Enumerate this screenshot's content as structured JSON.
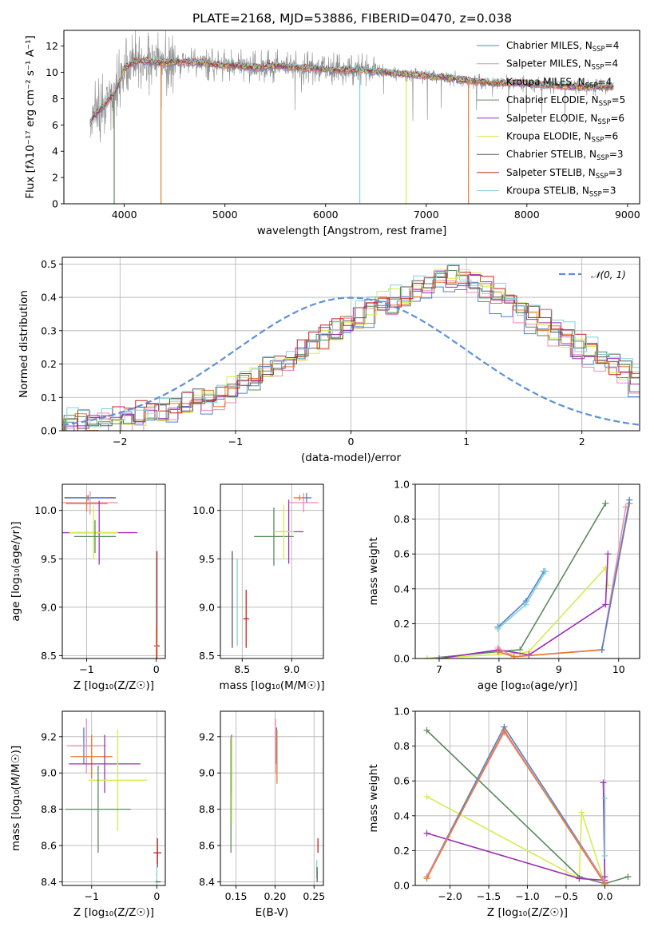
{
  "title": "PLATE=2168, MJD=53886, FIBERID=0470, z=0.038",
  "colors": [
    "#4f81d6",
    "#f08cb0",
    "#e87a2e",
    "#5b8a5b",
    "#9b30b6",
    "#d6ec50",
    "#5a5a5a",
    "#cc1f1f",
    "#7fd2d6"
  ],
  "chart_data": [
    {
      "id": "spectrum",
      "type": "line",
      "title": "PLATE=2168, MJD=53886, FIBERID=0470, z=0.038",
      "xlabel": "wavelength [Angstrom, rest frame]",
      "ylabel": "Flux [fλ10⁻¹⁷ erg cm⁻² s⁻¹ A⁻¹]",
      "xlim": [
        3400,
        9120
      ],
      "ylim": [
        0,
        13.2
      ],
      "xticks": [
        4000,
        5000,
        6000,
        7000,
        8000,
        9000
      ],
      "yticks": [
        0,
        2,
        4,
        6,
        8,
        10,
        12
      ],
      "grid": false,
      "legend_position": "top-right",
      "data_color": "#8c8c8c",
      "data_wavelength_range": [
        3660,
        8860
      ],
      "continuum": {
        "x": [
          3650,
          3700,
          3800,
          3900,
          3950,
          4000,
          4100,
          4200,
          4350,
          4500,
          4700,
          4900,
          5100,
          5300,
          5500,
          5700,
          5900,
          6100,
          6300,
          6500,
          6700,
          6900,
          7100,
          7300,
          7500,
          7700,
          7900,
          8100,
          8300,
          8500,
          8700,
          8850
        ],
        "y": [
          6.0,
          6.7,
          7.5,
          8.4,
          9.2,
          10.3,
          10.8,
          10.9,
          10.7,
          10.8,
          10.8,
          10.6,
          10.5,
          10.4,
          10.5,
          10.4,
          10.3,
          10.2,
          10.2,
          10.1,
          9.9,
          9.8,
          9.7,
          9.5,
          9.3,
          9.2,
          9.2,
          9.1,
          9.0,
          8.9,
          8.9,
          8.9
        ]
      },
      "dropouts": [
        {
          "series": 3,
          "x": 3900
        },
        {
          "series": 2,
          "x": 4365
        },
        {
          "series": 8,
          "x": 6340
        },
        {
          "series": 5,
          "x": 6800
        },
        {
          "series": 2,
          "x": 7420
        }
      ],
      "series": [
        {
          "name": "Chabrier MILES, N",
          "sub": "SSP",
          "tail": "=4"
        },
        {
          "name": "Salpeter MILES, N",
          "sub": "SSP",
          "tail": "=4"
        },
        {
          "name": "Kroupa MILES, N",
          "sub": "SSP",
          "tail": "=4"
        },
        {
          "name": "Chabrier ELODIE, N",
          "sub": "SSP",
          "tail": "=5"
        },
        {
          "name": "Salpeter ELODIE, N",
          "sub": "SSP",
          "tail": "=6"
        },
        {
          "name": "Kroupa ELODIE, N",
          "sub": "SSP",
          "tail": "=6"
        },
        {
          "name": "Chabrier STELIB, N",
          "sub": "SSP",
          "tail": "=3"
        },
        {
          "name": "Salpeter STELIB, N",
          "sub": "SSP",
          "tail": "=3"
        },
        {
          "name": "Kroupa STELIB, N",
          "sub": "SSP",
          "tail": "=3"
        }
      ]
    },
    {
      "id": "residuals",
      "type": "histogram",
      "xlabel": "(data-model)/error",
      "ylabel": "Normed distribution",
      "xlim": [
        -2.5,
        2.5
      ],
      "ylim": [
        0,
        0.52
      ],
      "xticks": [
        -2,
        -1,
        0,
        1,
        2
      ],
      "yticks": [
        0.0,
        0.1,
        0.2,
        0.3,
        0.4,
        0.5
      ],
      "grid": true,
      "legend_position": "top-right",
      "legend_label": "𝒩(0, 1)",
      "reference_curve": "normal distribution, mean 0, sigma 1",
      "bins": {
        "start": -2.5,
        "width": 0.1
      },
      "base_values": [
        0.02,
        0.025,
        0.03,
        0.03,
        0.035,
        0.04,
        0.045,
        0.05,
        0.06,
        0.07,
        0.08,
        0.09,
        0.1,
        0.11,
        0.125,
        0.14,
        0.16,
        0.18,
        0.2,
        0.22,
        0.24,
        0.26,
        0.28,
        0.3,
        0.32,
        0.34,
        0.36,
        0.38,
        0.39,
        0.41,
        0.42,
        0.43,
        0.45,
        0.45,
        0.46,
        0.44,
        0.42,
        0.4,
        0.38,
        0.36,
        0.34,
        0.32,
        0.3,
        0.28,
        0.25,
        0.23,
        0.21,
        0.19,
        0.17,
        0.15,
        0.13,
        0.11,
        0.09,
        0.08,
        0.07,
        0.06,
        0.05,
        0.045,
        0.04,
        0.035
      ]
    },
    {
      "id": "z-vs-age",
      "type": "scatter",
      "xlabel": "Z [log₁₀(Z/Z☉)]",
      "ylabel": "age  [log₁₀(age/yr)]",
      "xlim": [
        -1.35,
        0.13
      ],
      "ylim": [
        8.47,
        10.27
      ],
      "xticks": [
        -1,
        0
      ],
      "yticks": [
        8.5,
        9.0,
        9.5,
        10.0
      ],
      "grid": true,
      "points": [
        {
          "c": 6,
          "x": -0.95,
          "y": 10.13,
          "xe": 0.37,
          "ye": 0.0
        },
        {
          "c": 0,
          "x": -0.98,
          "y": 10.13,
          "xe": 0.3,
          "ye": 0.03
        },
        {
          "c": 1,
          "x": -0.95,
          "y": 10.08,
          "xe": 0.4,
          "ye": 0.12
        },
        {
          "c": 2,
          "x": -1.0,
          "y": 10.07,
          "xe": 0.3,
          "ye": 0.08
        },
        {
          "c": 4,
          "x": -0.82,
          "y": 9.77,
          "xe": 0.55,
          "ye": 0.33
        },
        {
          "c": 5,
          "x": -0.9,
          "y": 9.77,
          "xe": 0.35,
          "ye": 0.28
        },
        {
          "c": 3,
          "x": -0.88,
          "y": 9.73,
          "xe": 0.3,
          "ye": 0.17
        },
        {
          "c": 8,
          "x": 0.0,
          "y": 9.0,
          "xe": 0.02,
          "ye": 0.5
        },
        {
          "c": 7,
          "x": 0.01,
          "y": 8.6,
          "xe": 0.04,
          "ye": 0.98
        },
        {
          "c": 2,
          "x": 0.0,
          "y": 8.6,
          "xe": 0.02,
          "ye": 0.2
        }
      ]
    },
    {
      "id": "mass-vs-age",
      "type": "scatter",
      "xlabel": "mass [log₁₀(M/M☉)]",
      "ylabel": "",
      "xlim": [
        8.28,
        9.32
      ],
      "ylim": [
        8.47,
        10.27
      ],
      "xticks": [
        8.5,
        9.0
      ],
      "yticks": [
        8.5,
        9.0,
        9.5,
        10.0
      ],
      "grid": true,
      "points": [
        {
          "c": 6,
          "x": 8.4,
          "y": 9.08,
          "xe": 0.0,
          "ye": 0.5
        },
        {
          "c": 8,
          "x": 8.45,
          "y": 9.05,
          "xe": 0.0,
          "ye": 0.45
        },
        {
          "c": 7,
          "x": 8.54,
          "y": 8.88,
          "xe": 0.03,
          "ye": 0.3
        },
        {
          "c": 3,
          "x": 8.82,
          "y": 9.73,
          "xe": 0.2,
          "ye": 0.3
        },
        {
          "c": 4,
          "x": 8.97,
          "y": 9.78,
          "xe": 0.15,
          "ye": 0.33
        },
        {
          "c": 5,
          "x": 8.92,
          "y": 9.78,
          "xe": 0.1,
          "ye": 0.28
        },
        {
          "c": 1,
          "x": 9.12,
          "y": 10.08,
          "xe": 0.15,
          "ye": 0.1
        },
        {
          "c": 0,
          "x": 9.15,
          "y": 10.13,
          "xe": 0.05,
          "ye": 0.05
        },
        {
          "c": 2,
          "x": 9.08,
          "y": 10.13,
          "xe": 0.06,
          "ye": 0.03
        }
      ]
    },
    {
      "id": "age-vs-weight",
      "type": "line",
      "xlabel": "age  [log₁₀(age/yr)]",
      "ylabel": "mass weight",
      "xlim": [
        6.6,
        10.35
      ],
      "ylim": [
        0,
        1.0
      ],
      "xticks": [
        7,
        8,
        9,
        10
      ],
      "yticks": [
        0.0,
        0.2,
        0.4,
        0.6,
        0.8,
        1.0
      ],
      "grid": true,
      "series": [
        {
          "c": 0,
          "points": [
            [
              7.98,
              0.18
            ],
            [
              8.45,
              0.33
            ],
            [
              8.75,
              0.5
            ]
          ]
        },
        {
          "c": 8,
          "points": [
            [
              7.98,
              0.17
            ],
            [
              8.45,
              0.31
            ],
            [
              8.78,
              0.5
            ]
          ]
        },
        {
          "c": 3,
          "points": [
            [
              6.8,
              0.0
            ],
            [
              8.0,
              0.04
            ],
            [
              8.35,
              0.05
            ],
            [
              9.78,
              0.89
            ]
          ]
        },
        {
          "c": 5,
          "points": [
            [
              6.8,
              0.0
            ],
            [
              8.35,
              0.03
            ],
            [
              8.5,
              0.04
            ],
            [
              9.78,
              0.52
            ],
            [
              9.82,
              0.42
            ]
          ]
        },
        {
          "c": 4,
          "points": [
            [
              7.0,
              0.0
            ],
            [
              8.0,
              0.05
            ],
            [
              8.5,
              0.02
            ],
            [
              9.78,
              0.31
            ],
            [
              9.82,
              0.6
            ]
          ]
        },
        {
          "c": 1,
          "points": [
            [
              7.98,
              0.06
            ],
            [
              8.25,
              0.01
            ],
            [
              9.72,
              0.05
            ],
            [
              10.12,
              0.87
            ]
          ]
        },
        {
          "c": 2,
          "points": [
            [
              7.98,
              0.04
            ],
            [
              8.25,
              0.01
            ],
            [
              9.72,
              0.05
            ],
            [
              10.18,
              0.89
            ]
          ]
        },
        {
          "c": 0,
          "points": [
            [
              9.72,
              0.05
            ],
            [
              10.18,
              0.91
            ]
          ]
        }
      ]
    },
    {
      "id": "z-vs-mass",
      "type": "scatter",
      "xlabel": "Z [log₁₀(Z/Z☉)]",
      "ylabel": "mass [log₁₀(M/M☉)]",
      "xlim": [
        -1.45,
        0.13
      ],
      "ylim": [
        8.38,
        9.34
      ],
      "xticks": [
        -1,
        0
      ],
      "yticks": [
        8.4,
        8.6,
        8.8,
        9.0,
        9.2
      ],
      "grid": true,
      "points": [
        {
          "c": 0,
          "x": -1.12,
          "y": 9.15,
          "xe": 0.22,
          "ye": 0.1
        },
        {
          "c": 1,
          "x": -1.08,
          "y": 9.15,
          "xe": 0.3,
          "ye": 0.15
        },
        {
          "c": 2,
          "x": -1.0,
          "y": 9.09,
          "xe": 0.32,
          "ye": 0.12
        },
        {
          "c": 4,
          "x": -0.8,
          "y": 9.05,
          "xe": 0.55,
          "ye": 0.16
        },
        {
          "c": 5,
          "x": -0.6,
          "y": 8.96,
          "xe": 0.45,
          "ye": 0.28
        },
        {
          "c": 3,
          "x": -0.9,
          "y": 8.8,
          "xe": 0.5,
          "ye": 0.24
        },
        {
          "c": 7,
          "x": 0.01,
          "y": 8.56,
          "xe": 0.06,
          "ye": 0.08
        },
        {
          "c": 8,
          "x": 0.0,
          "y": 8.44,
          "xe": 0.01,
          "ye": 0.06
        },
        {
          "c": 6,
          "x": 0.02,
          "y": 8.4,
          "xe": 0.04,
          "ye": 0.0
        }
      ]
    },
    {
      "id": "ebv-vs-mass",
      "type": "scatter",
      "xlabel": "E(B-V)",
      "ylabel": "",
      "xlim": [
        0.13,
        0.262
      ],
      "ylim": [
        8.38,
        9.34
      ],
      "xticks": [
        0.15,
        0.2,
        0.25
      ],
      "yticks": [
        8.4,
        8.6,
        8.8,
        9.0,
        9.2
      ],
      "grid": true,
      "points": [
        {
          "c": 3,
          "x": 0.1435,
          "y": 8.88,
          "xe": 0.0,
          "ye": 0.32
        },
        {
          "c": 4,
          "x": 0.1445,
          "y": 9.05,
          "xe": 0.0,
          "ye": 0.16
        },
        {
          "c": 5,
          "x": 0.1445,
          "y": 8.96,
          "xe": 0.0,
          "ye": 0.24
        },
        {
          "c": 1,
          "x": 0.2005,
          "y": 9.15,
          "xe": 0.0,
          "ye": 0.15
        },
        {
          "c": 0,
          "x": 0.202,
          "y": 9.15,
          "xe": 0.0,
          "ye": 0.1
        },
        {
          "c": 2,
          "x": 0.2025,
          "y": 9.09,
          "xe": 0.0,
          "ye": 0.15
        },
        {
          "c": 8,
          "x": 0.2535,
          "y": 8.47,
          "xe": 0.0,
          "ye": 0.05
        },
        {
          "c": 6,
          "x": 0.254,
          "y": 8.44,
          "xe": 0.0,
          "ye": 0.04
        },
        {
          "c": 7,
          "x": 0.255,
          "y": 8.6,
          "xe": 0.0,
          "ye": 0.04
        }
      ]
    },
    {
      "id": "z-vs-weight",
      "type": "line",
      "xlabel": "Z [log₁₀(Z/Z☉)]",
      "ylabel": "mass weight",
      "xlim": [
        -2.45,
        0.45
      ],
      "ylim": [
        0,
        1.0
      ],
      "xticks": [
        -2.0,
        -1.5,
        -1.0,
        -0.5,
        0.0
      ],
      "yticks": [
        0.0,
        0.2,
        0.4,
        0.6,
        0.8,
        1.0
      ],
      "grid": true,
      "series": [
        {
          "c": 3,
          "points": [
            [
              -2.3,
              0.89
            ],
            [
              -0.33,
              0.05
            ],
            [
              0.0,
              0.01
            ],
            [
              0.3,
              0.05
            ]
          ]
        },
        {
          "c": 5,
          "points": [
            [
              -2.3,
              0.51
            ],
            [
              -0.33,
              0.04
            ],
            [
              -0.3,
              0.42
            ],
            [
              0.0,
              0.01
            ]
          ]
        },
        {
          "c": 4,
          "points": [
            [
              -2.3,
              0.3
            ],
            [
              -0.33,
              0.04
            ],
            [
              0.0,
              0.03
            ],
            [
              -0.02,
              0.59
            ],
            [
              0.0,
              0.05
            ]
          ]
        },
        {
          "c": 0,
          "points": [
            [
              -2.3,
              0.05
            ],
            [
              -1.3,
              0.91
            ],
            [
              0.0,
              0.02
            ]
          ]
        },
        {
          "c": 1,
          "points": [
            [
              -2.3,
              0.05
            ],
            [
              -1.3,
              0.88
            ],
            [
              0.0,
              0.02
            ]
          ]
        },
        {
          "c": 2,
          "points": [
            [
              -2.3,
              0.04
            ],
            [
              -1.3,
              0.89
            ],
            [
              0.0,
              0.01
            ]
          ]
        },
        {
          "c": 8,
          "points": [
            [
              0.0,
              0.5
            ],
            [
              0.0,
              0.17
            ]
          ]
        }
      ]
    }
  ]
}
